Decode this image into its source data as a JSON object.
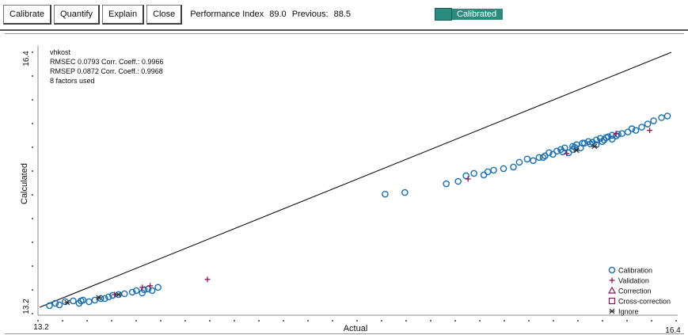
{
  "toolbar": {
    "buttons": [
      "Calibrate",
      "Quantify",
      "Explain",
      "Close"
    ],
    "performance_label": "Performance Index",
    "performance_value": "89.0",
    "previous_label": "Previous:",
    "previous_value": "88.5",
    "status_text": "Calibrated",
    "status_color": "#2e8b7d"
  },
  "chart_data": {
    "type": "scatter",
    "title": "",
    "xlabel": "Actual",
    "ylabel": "Calculated",
    "xlim": [
      13.2,
      16.4
    ],
    "ylim": [
      13.2,
      16.4
    ],
    "x_tick_labels": [
      "13.2",
      "16.4"
    ],
    "y_tick_labels": [
      "13.2",
      "16.4"
    ],
    "grid": false,
    "legend_position": "bottom-right",
    "stats": [
      "vhkost",
      "RMSEC 0.0793  Corr. Coeff.: 0.9966",
      "RMSEP 0.0872  Corr. Coeff.: 0.9968",
      "8 factors used"
    ],
    "regression_line": {
      "x": [
        13.2,
        16.4
      ],
      "y": [
        13.2,
        16.4
      ]
    },
    "legend": [
      {
        "label": "Calibration",
        "marker": "circle",
        "color": "#1f6fb0"
      },
      {
        "label": "Validation",
        "marker": "plus",
        "color": "#8b1a5e"
      },
      {
        "label": "Correction",
        "marker": "triangle",
        "color": "#8b1a5e"
      },
      {
        "label": "Cross-correction",
        "marker": "square",
        "color": "#8b1a5e"
      },
      {
        "label": "Ignore",
        "marker": "star",
        "color": "#333333"
      }
    ],
    "series": [
      {
        "name": "Calibration",
        "marker": "circle",
        "color": "#1f6fb0",
        "points": [
          [
            13.25,
            13.22
          ],
          [
            13.28,
            13.25
          ],
          [
            13.3,
            13.23
          ],
          [
            13.33,
            13.27
          ],
          [
            13.37,
            13.28
          ],
          [
            13.4,
            13.25
          ],
          [
            13.42,
            13.29
          ],
          [
            13.45,
            13.27
          ],
          [
            13.48,
            13.29
          ],
          [
            13.51,
            13.31
          ],
          [
            13.55,
            13.33
          ],
          [
            13.57,
            13.35
          ],
          [
            13.6,
            13.36
          ],
          [
            13.63,
            13.37
          ],
          [
            13.67,
            13.39
          ],
          [
            13.69,
            13.41
          ],
          [
            13.72,
            13.38
          ],
          [
            13.75,
            13.43
          ],
          [
            13.77,
            13.41
          ],
          [
            13.8,
            13.45
          ],
          [
            13.73,
            13.42
          ],
          [
            13.41,
            13.28
          ],
          [
            13.53,
            13.31
          ],
          [
            14.95,
            14.62
          ],
          [
            15.05,
            14.64
          ],
          [
            15.26,
            14.75
          ],
          [
            15.32,
            14.78
          ],
          [
            15.36,
            14.85
          ],
          [
            15.4,
            14.88
          ],
          [
            15.45,
            14.86
          ],
          [
            15.5,
            14.92
          ],
          [
            15.55,
            14.94
          ],
          [
            15.6,
            14.96
          ],
          [
            15.63,
            15.02
          ],
          [
            15.67,
            15.06
          ],
          [
            15.7,
            15.04
          ],
          [
            15.73,
            15.08
          ],
          [
            15.76,
            15.1
          ],
          [
            15.78,
            15.14
          ],
          [
            15.8,
            15.12
          ],
          [
            15.82,
            15.16
          ],
          [
            15.84,
            15.18
          ],
          [
            15.86,
            15.2
          ],
          [
            15.88,
            15.14
          ],
          [
            15.9,
            15.22
          ],
          [
            15.92,
            15.24
          ],
          [
            15.94,
            15.2
          ],
          [
            15.96,
            15.26
          ],
          [
            15.98,
            15.28
          ],
          [
            16.0,
            15.27
          ],
          [
            16.02,
            15.3
          ],
          [
            16.04,
            15.32
          ],
          [
            16.06,
            15.3
          ],
          [
            16.08,
            15.34
          ],
          [
            16.1,
            15.36
          ],
          [
            16.12,
            15.35
          ],
          [
            16.15,
            15.38
          ],
          [
            16.18,
            15.4
          ],
          [
            16.2,
            15.44
          ],
          [
            16.22,
            15.42
          ],
          [
            16.25,
            15.46
          ],
          [
            16.28,
            15.5
          ],
          [
            16.31,
            15.54
          ],
          [
            16.35,
            15.58
          ],
          [
            15.91,
            15.21
          ],
          [
            15.99,
            15.25
          ],
          [
            16.07,
            15.33
          ],
          [
            16.13,
            15.37
          ],
          [
            16.38,
            15.6
          ],
          [
            15.75,
            15.08
          ],
          [
            15.85,
            15.15
          ],
          [
            15.47,
            14.9
          ],
          [
            15.9,
            15.18
          ],
          [
            16.02,
            15.24
          ],
          [
            16.05,
            15.28
          ],
          [
            15.95,
            15.26
          ],
          [
            16.1,
            15.31
          ]
        ]
      },
      {
        "name": "Validation",
        "marker": "plus",
        "color": "#8b1a5e",
        "points": [
          [
            13.58,
            13.36
          ],
          [
            13.72,
            13.45
          ],
          [
            13.76,
            13.47
          ],
          [
            14.05,
            13.55
          ],
          [
            15.37,
            14.81
          ],
          [
            15.87,
            15.13
          ],
          [
            16.12,
            15.38
          ],
          [
            16.29,
            15.42
          ]
        ]
      },
      {
        "name": "Ignore",
        "marker": "star",
        "color": "#333333",
        "points": [
          [
            13.34,
            13.26
          ],
          [
            13.5,
            13.32
          ],
          [
            13.6,
            13.36
          ],
          [
            15.92,
            15.17
          ],
          [
            16.01,
            15.22
          ]
        ]
      }
    ]
  }
}
